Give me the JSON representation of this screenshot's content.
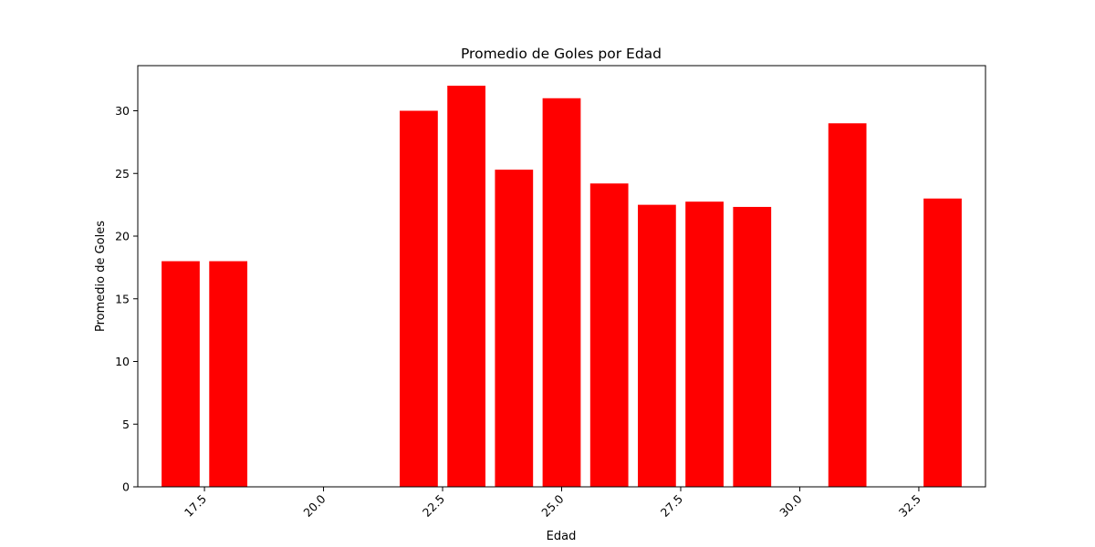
{
  "chart_data": {
    "type": "bar",
    "title": "Promedio de Goles por Edad",
    "xlabel": "Edad",
    "ylabel": "Promedio de Goles",
    "x": [
      17,
      18,
      22,
      23,
      24,
      25,
      26,
      27,
      28,
      29,
      31,
      33
    ],
    "values": [
      18.0,
      18.0,
      30.0,
      32.0,
      25.3,
      31.0,
      24.2,
      22.5,
      22.75,
      22.33,
      29.0,
      23.0
    ],
    "bar_width": 0.8,
    "bar_color": "#ff0000",
    "xlim": [
      16.1,
      33.9
    ],
    "ylim": [
      0,
      33.6
    ],
    "xticks": [
      17.5,
      20.0,
      22.5,
      25.0,
      27.5,
      30.0,
      32.5
    ],
    "xtick_labels": [
      "17.5",
      "20.0",
      "22.5",
      "25.0",
      "27.5",
      "30.0",
      "32.5"
    ],
    "yticks": [
      0,
      5,
      10,
      15,
      20,
      25,
      30
    ],
    "ytick_labels": [
      "0",
      "5",
      "10",
      "15",
      "20",
      "25",
      "30"
    ],
    "xtick_rotation": 45,
    "grid": false,
    "legend": false
  }
}
